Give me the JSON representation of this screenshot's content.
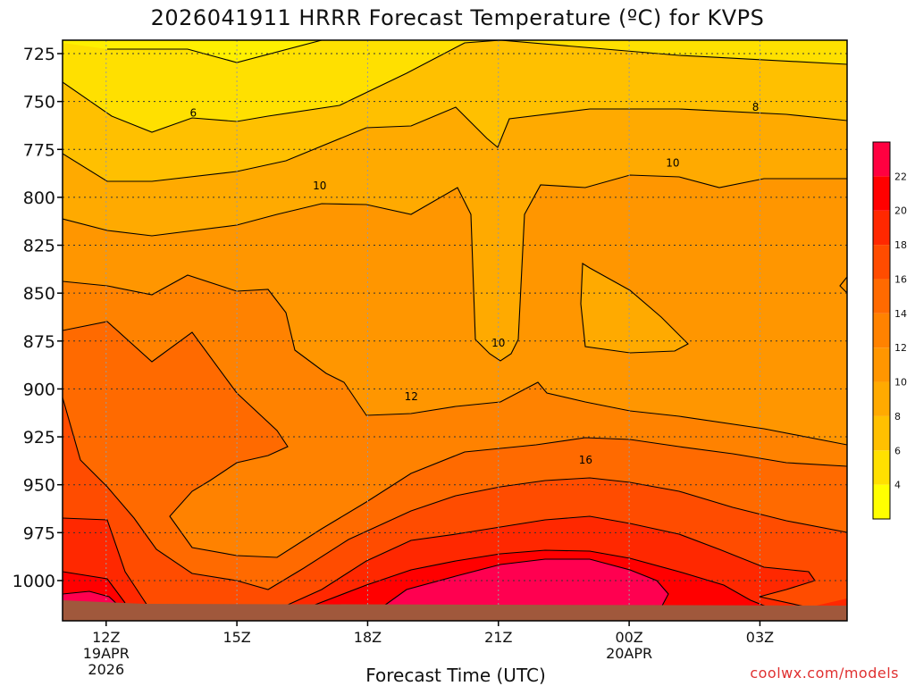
{
  "chart_data": {
    "type": "heatmap",
    "title": "2026041911 HRRR Forecast Temperature (ºC) for KVPS",
    "xlabel": "Forecast Time (UTC)",
    "ylabel": "",
    "credit": "coolwx.com/models",
    "x_ticks": [
      {
        "hour": 12,
        "label": "12Z",
        "sub": [
          "19APR",
          "2026"
        ]
      },
      {
        "hour": 15,
        "label": "15Z",
        "sub": []
      },
      {
        "hour": 18,
        "label": "18Z",
        "sub": []
      },
      {
        "hour": 21,
        "label": "21Z",
        "sub": []
      },
      {
        "hour": 24,
        "label": "00Z",
        "sub": [
          "20APR"
        ]
      },
      {
        "hour": 27,
        "label": "03Z",
        "sub": []
      }
    ],
    "xlim_hours": [
      11,
      29
    ],
    "y_ticks": [
      725,
      750,
      775,
      800,
      825,
      850,
      875,
      900,
      925,
      950,
      975,
      1000
    ],
    "ylim_hPa": [
      718,
      1021
    ],
    "surface_pressure_hPa": 1012,
    "colorbar": {
      "levels": [
        2,
        4,
        6,
        8,
        10,
        12,
        14,
        16,
        18,
        20,
        22,
        24
      ],
      "labels": [
        4,
        6,
        8,
        10,
        12,
        14,
        16,
        18,
        20,
        22
      ],
      "colors": [
        "#ffff00",
        "#ffe000",
        "#ffc000",
        "#ffaa00",
        "#ff9600",
        "#ff8200",
        "#ff6a00",
        "#ff4c00",
        "#ff2800",
        "#ff0000",
        "#ff0040"
      ]
    },
    "contour_labels": [
      {
        "text": "6",
        "hour": 14.0,
        "p": 756
      },
      {
        "text": "8",
        "hour": 26.9,
        "p": 753
      },
      {
        "text": "10",
        "hour": 16.9,
        "p": 794
      },
      {
        "text": "10",
        "hour": 25.0,
        "p": 782
      },
      {
        "text": "10",
        "hour": 21.0,
        "p": 876
      },
      {
        "text": "12",
        "hour": 19.0,
        "p": 904
      },
      {
        "text": "16",
        "hour": 23.0,
        "p": 937
      }
    ]
  }
}
